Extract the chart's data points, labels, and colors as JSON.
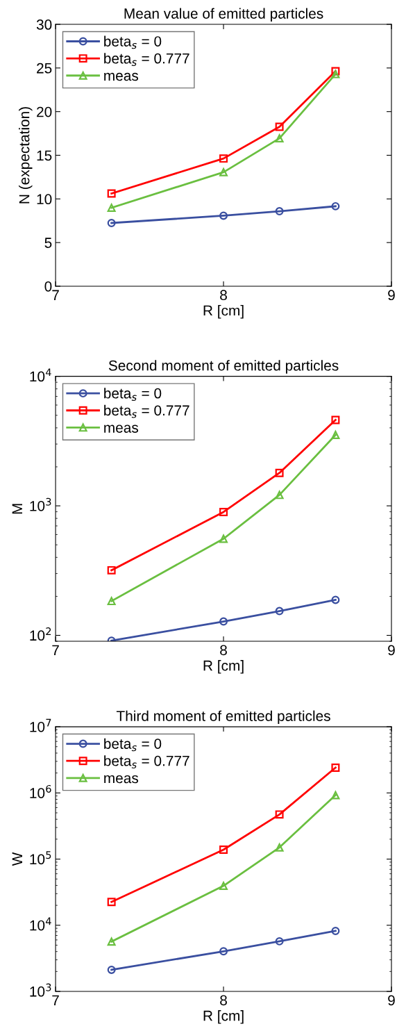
{
  "chart_data": [
    {
      "type": "line",
      "title": "Mean value of emitted particles",
      "xlabel": "R [cm]",
      "ylabel": "N (expectation)",
      "x": [
        7.333,
        8,
        8.333,
        8.667
      ],
      "xlim": [
        7,
        9
      ],
      "xticks": [
        7,
        8,
        9
      ],
      "ylim": [
        0,
        30
      ],
      "yticks": [
        0,
        5,
        10,
        15,
        20,
        25,
        30
      ],
      "grid": false,
      "legend": "top left",
      "series": [
        {
          "name": "beta$_{s}$ = 0",
          "color": "#3a4fa0",
          "marker": "circle",
          "values": [
            7.24,
            8.08,
            8.59,
            9.16
          ]
        },
        {
          "name": "beta$_{s}$ = 0.777",
          "color": "#ff0000",
          "marker": "square",
          "values": [
            10.62,
            14.63,
            18.26,
            24.63
          ]
        },
        {
          "name": "meas",
          "color": "#6abf40",
          "marker": "triangle",
          "values": [
            8.99,
            13.06,
            16.94,
            24.3
          ]
        }
      ]
    },
    {
      "type": "line",
      "title": "Second moment of emitted particles",
      "xlabel": "R [cm]",
      "ylabel": "M",
      "log": "y",
      "x": [
        7.333,
        8,
        8.333,
        8.667
      ],
      "xlim": [
        7,
        9
      ],
      "xticks": [
        7,
        8,
        9
      ],
      "ylim": [
        90,
        10000
      ],
      "yticks": [
        {
          "value": 100,
          "label": "10$^{2}$"
        },
        {
          "value": 1000,
          "label": "10$^{3}$"
        },
        {
          "value": 10000,
          "label": "10$^{4}$"
        }
      ],
      "grid": false,
      "legend": "top left",
      "series": [
        {
          "name": "beta$_{s}$ = 0",
          "color": "#3a4fa0",
          "marker": "circle",
          "values": [
            91,
            128,
            154,
            188
          ]
        },
        {
          "name": "beta$_{s}$ = 0.777",
          "color": "#ff0000",
          "marker": "square",
          "values": [
            318,
            896,
            1795,
            4600
          ]
        },
        {
          "name": "meas",
          "color": "#6abf40",
          "marker": "triangle",
          "values": [
            184,
            557,
            1214,
            3530
          ]
        }
      ]
    },
    {
      "type": "line",
      "title": "Third moment of emitted particles",
      "xlabel": "R [cm]",
      "ylabel": "W",
      "log": "y",
      "x": [
        7.333,
        8,
        8.333,
        8.667
      ],
      "xlim": [
        7,
        9
      ],
      "xticks": [
        7,
        8,
        9
      ],
      "ylim": [
        1000,
        10000000
      ],
      "yticks": [
        {
          "value": 1000,
          "label": "10$^{3}$"
        },
        {
          "value": 10000,
          "label": "10$^{4}$"
        },
        {
          "value": 100000,
          "label": "10$^{5}$"
        },
        {
          "value": 1000000,
          "label": "10$^{6}$"
        },
        {
          "value": 10000000,
          "label": "10$^{7}$"
        }
      ],
      "grid": false,
      "legend": "top left",
      "series": [
        {
          "name": "beta$_{s}$ = 0",
          "color": "#3a4fa0",
          "marker": "circle",
          "values": [
            2120,
            4040,
            5720,
            8200
          ]
        },
        {
          "name": "beta$_{s}$ = 0.777",
          "color": "#ff0000",
          "marker": "square",
          "values": [
            22500,
            138700,
            472000,
            2410000
          ]
        },
        {
          "name": "meas",
          "color": "#6abf40",
          "marker": "triangle",
          "values": [
            5660,
            39400,
            150000,
            925000
          ]
        }
      ]
    }
  ]
}
